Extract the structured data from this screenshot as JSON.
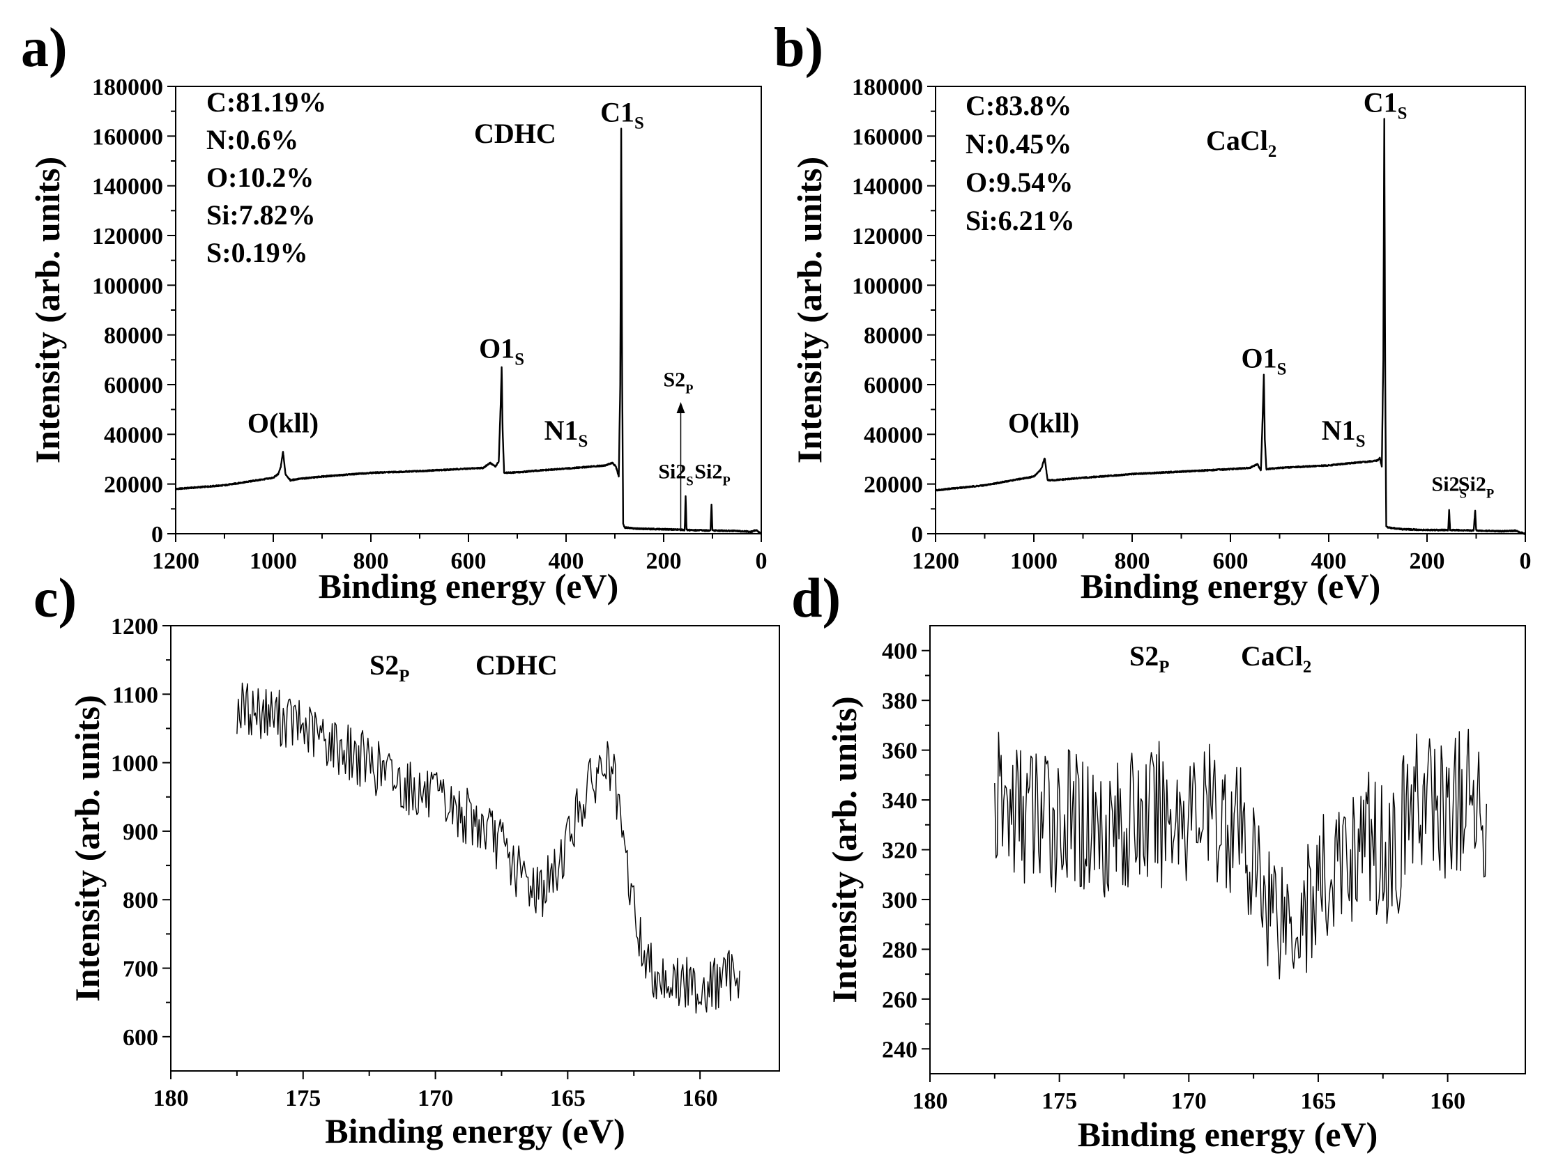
{
  "colors": {
    "line": "#000000",
    "background": "#ffffff"
  },
  "panels": [
    {
      "letter": "a)",
      "sample_label": "CDHC",
      "sample_sub": "",
      "composition": [
        "C:81.19%",
        "N:0.6%",
        "O:10.2%",
        "Si:7.82%",
        "S:0.19%"
      ]
    },
    {
      "letter": "b)",
      "sample_label": "CaCl",
      "sample_sub": "2",
      "composition": [
        "C:83.8%",
        "N:0.45%",
        "O:9.54%",
        "Si:6.21%"
      ]
    },
    {
      "letter": "c)",
      "peak_label": "S2",
      "peak_sub": "P",
      "sample_label": "CDHC",
      "sample_sub": ""
    },
    {
      "letter": "d)",
      "peak_label": "S2",
      "peak_sub": "P",
      "sample_label": "CaCl",
      "sample_sub": "2"
    }
  ],
  "chart_data": [
    {
      "type": "line",
      "panel": "a)",
      "xlabel": "Binding energy (eV)",
      "ylabel": "Intensity (arb. units)",
      "xlim": [
        1200,
        0
      ],
      "ylim": [
        0,
        180000
      ],
      "xticks": [
        1200,
        1000,
        800,
        600,
        400,
        200,
        0
      ],
      "yticks": [
        0,
        20000,
        40000,
        60000,
        80000,
        100000,
        120000,
        140000,
        160000,
        180000
      ],
      "annotations": [
        {
          "text": "O(kll)",
          "sub": "",
          "x": 980,
          "y": 38000
        },
        {
          "text": "O1",
          "sub": "S",
          "x": 532,
          "y": 68000
        },
        {
          "text": "N1",
          "sub": "S",
          "x": 400,
          "y": 35000
        },
        {
          "text": "C1",
          "sub": "S",
          "x": 285,
          "y": 163000
        },
        {
          "text": "S2",
          "sub": "P",
          "x": 170,
          "y": 57000
        },
        {
          "text": "Si2",
          "sub": "S",
          "x": 175,
          "y": 20000
        },
        {
          "text": "Si2",
          "sub": "P",
          "x": 100,
          "y": 20000
        }
      ],
      "arrow": {
        "x": 165,
        "y_from": 1000,
        "y_to": 53000
      },
      "series": [
        {
          "points": [
            [
              1200,
              18000
            ],
            [
              1100,
              19500
            ],
            [
              1000,
              22500
            ],
            [
              990,
              24000
            ],
            [
              985,
              26500
            ],
            [
              980,
              33000
            ],
            [
              975,
              24000
            ],
            [
              965,
              21500
            ],
            [
              950,
              22000
            ],
            [
              900,
              23000
            ],
            [
              800,
              24500
            ],
            [
              700,
              25200
            ],
            [
              600,
              26200
            ],
            [
              570,
              26500
            ],
            [
              555,
              28500
            ],
            [
              545,
              27000
            ],
            [
              538,
              29000
            ],
            [
              534,
              52000
            ],
            [
              532,
              67000
            ],
            [
              530,
              42000
            ],
            [
              527,
              24500
            ],
            [
              500,
              24700
            ],
            [
              450,
              25500
            ],
            [
              400,
              26200
            ],
            [
              350,
              27000
            ],
            [
              320,
              27500
            ],
            [
              305,
              28500
            ],
            [
              298,
              27000
            ],
            [
              292,
              23000
            ],
            [
              289,
              60000
            ],
            [
              287,
              163000
            ],
            [
              285,
              60000
            ],
            [
              283,
              4000
            ],
            [
              280,
              2500
            ],
            [
              250,
              2000
            ],
            [
              200,
              1800
            ],
            [
              160,
              1600
            ],
            [
              157,
              1500
            ],
            [
              155,
              15000
            ],
            [
              153,
              1500
            ],
            [
              110,
              1300
            ],
            [
              104,
              1300
            ],
            [
              102,
              12000
            ],
            [
              100,
              1300
            ],
            [
              50,
              1100
            ],
            [
              20,
              800
            ],
            [
              10,
              1500
            ],
            [
              5,
              600
            ],
            [
              0,
              0
            ]
          ]
        }
      ]
    },
    {
      "type": "line",
      "panel": "b)",
      "xlabel": "Binding energy (eV)",
      "ylabel": "Intensity (arb. units)",
      "xlim": [
        1200,
        0
      ],
      "ylim": [
        0,
        180000
      ],
      "xticks": [
        1200,
        1000,
        800,
        600,
        400,
        200,
        0
      ],
      "yticks": [
        0,
        20000,
        40000,
        60000,
        80000,
        100000,
        120000,
        140000,
        160000,
        180000
      ],
      "annotations": [
        {
          "text": "O(kll)",
          "sub": "",
          "x": 980,
          "y": 38000
        },
        {
          "text": "O1",
          "sub": "S",
          "x": 532,
          "y": 64000
        },
        {
          "text": "N1",
          "sub": "S",
          "x": 370,
          "y": 35000
        },
        {
          "text": "C1",
          "sub": "S",
          "x": 285,
          "y": 167000
        },
        {
          "text": "Si2",
          "sub": "S",
          "x": 155,
          "y": 15000
        },
        {
          "text": "Si2",
          "sub": "P",
          "x": 100,
          "y": 15000
        }
      ],
      "series": [
        {
          "points": [
            [
              1200,
              17500
            ],
            [
              1100,
              19500
            ],
            [
              1000,
              23000
            ],
            [
              990,
              25000
            ],
            [
              985,
              26000
            ],
            [
              978,
              30500
            ],
            [
              972,
              21500
            ],
            [
              960,
              21500
            ],
            [
              900,
              22500
            ],
            [
              800,
              24000
            ],
            [
              700,
              25000
            ],
            [
              600,
              26000
            ],
            [
              560,
              26500
            ],
            [
              545,
              28000
            ],
            [
              538,
              25500
            ],
            [
              534,
              50000
            ],
            [
              532,
              64000
            ],
            [
              530,
              38000
            ],
            [
              527,
              26000
            ],
            [
              500,
              26500
            ],
            [
              450,
              27000
            ],
            [
              400,
              27500
            ],
            [
              350,
              28500
            ],
            [
              320,
              29000
            ],
            [
              300,
              29500
            ],
            [
              296,
              30500
            ],
            [
              292,
              27000
            ],
            [
              289,
              70000
            ],
            [
              287,
              167000
            ],
            [
              285,
              60000
            ],
            [
              283,
              3000
            ],
            [
              280,
              2500
            ],
            [
              250,
              1800
            ],
            [
              200,
              1500
            ],
            [
              160,
              1500
            ],
            [
              157,
              1500
            ],
            [
              155,
              9500
            ],
            [
              153,
              1500
            ],
            [
              105,
              1300
            ],
            [
              102,
              9500
            ],
            [
              100,
              1300
            ],
            [
              50,
              1000
            ],
            [
              20,
              1200
            ],
            [
              10,
              500
            ],
            [
              0,
              0
            ]
          ]
        }
      ]
    },
    {
      "type": "line",
      "panel": "c)",
      "xlabel": "Binding energy (eV)",
      "ylabel": "Intensity (arb. units)",
      "xlim": [
        180,
        157
      ],
      "ylim": [
        550,
        1200
      ],
      "xticks": [
        180,
        175,
        170,
        165,
        160
      ],
      "yticks": [
        600,
        700,
        800,
        900,
        1000,
        1100,
        1200
      ],
      "series": [
        {
          "points": [
            [
              177.5,
              1080
            ],
            [
              176.5,
              1075
            ],
            [
              175.5,
              1060
            ],
            [
              174.5,
              1040
            ],
            [
              173.5,
              1020
            ],
            [
              172.5,
              1000
            ],
            [
              171.5,
              975
            ],
            [
              170.5,
              955
            ],
            [
              169.5,
              935
            ],
            [
              168.5,
              915
            ],
            [
              167.5,
              880
            ],
            [
              167.0,
              845
            ],
            [
              166.5,
              825
            ],
            [
              166.0,
              815
            ],
            [
              165.5,
              835
            ],
            [
              165.0,
              890
            ],
            [
              164.5,
              940
            ],
            [
              164.0,
              975
            ],
            [
              163.6,
              1000
            ],
            [
              163.3,
              985
            ],
            [
              163.0,
              900
            ],
            [
              162.6,
              810
            ],
            [
              162.3,
              745
            ],
            [
              162.0,
              705
            ],
            [
              161.5,
              690
            ],
            [
              161.0,
              680
            ],
            [
              160.5,
              675
            ],
            [
              160.0,
              672
            ],
            [
              159.5,
              675
            ],
            [
              159.0,
              685
            ],
            [
              158.5,
              700
            ]
          ]
        }
      ]
    },
    {
      "type": "line",
      "panel": "d)",
      "xlabel": "Binding energy (eV)",
      "ylabel": "Intensity (arb. units)",
      "xlim": [
        180,
        157
      ],
      "ylim": [
        230,
        410
      ],
      "xticks": [
        180,
        175,
        170,
        165,
        160
      ],
      "yticks": [
        240,
        260,
        280,
        300,
        320,
        340,
        360,
        380,
        400
      ],
      "series": [
        {
          "points": [
            [
              177.5,
              338
            ],
            [
              176.5,
              335
            ],
            [
              175.5,
              333
            ],
            [
              174.5,
              331
            ],
            [
              173.5,
              330
            ],
            [
              172.5,
              330
            ],
            [
              171.5,
              333
            ],
            [
              170.5,
              336
            ],
            [
              169.5,
              335
            ],
            [
              168.5,
              333
            ],
            [
              168.0,
              325
            ],
            [
              167.5,
              312
            ],
            [
              167.0,
              303
            ],
            [
              166.5,
              297
            ],
            [
              166.0,
              293
            ],
            [
              165.5,
              297
            ],
            [
              165.0,
              303
            ],
            [
              164.5,
              308
            ],
            [
              164.0,
              315
            ],
            [
              163.5,
              322
            ],
            [
              163.0,
              325
            ],
            [
              162.5,
              318
            ],
            [
              162.0,
              320
            ],
            [
              161.5,
              337
            ],
            [
              161.0,
              340
            ],
            [
              160.5,
              338
            ],
            [
              160.0,
              336
            ],
            [
              159.5,
              338
            ],
            [
              159.0,
              340
            ],
            [
              158.5,
              338
            ]
          ]
        }
      ]
    }
  ]
}
